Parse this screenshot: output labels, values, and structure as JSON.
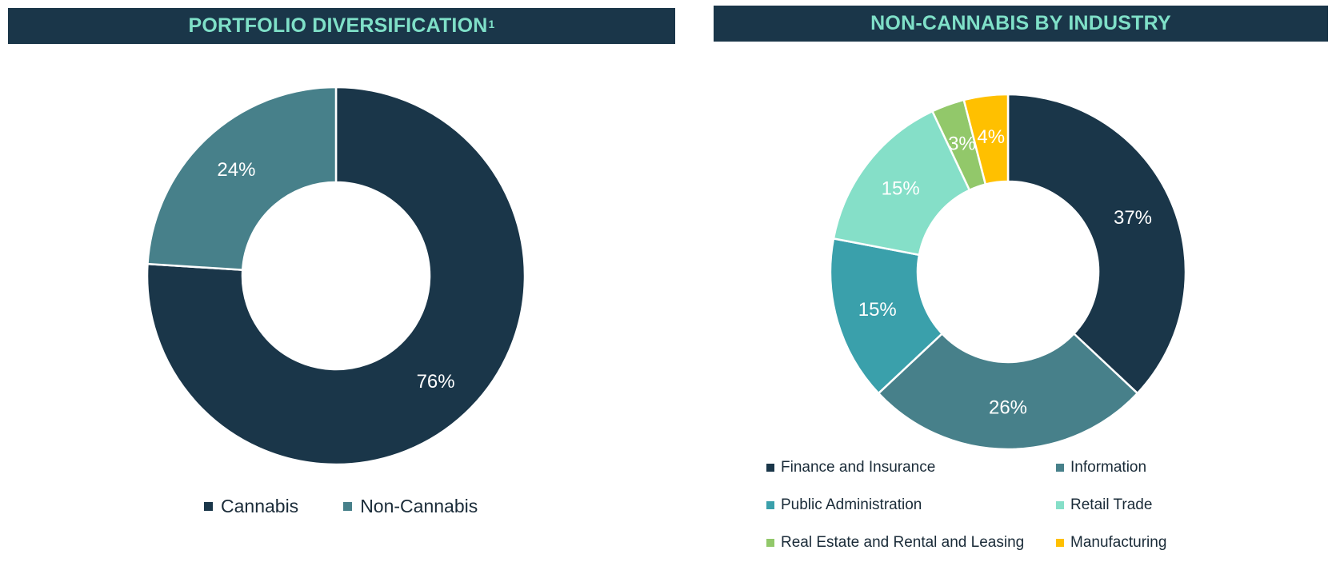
{
  "left": {
    "title": "PORTFOLIO DIVERSIFICATION",
    "title_sup": "1"
  },
  "right": {
    "title": "NON-CANNABIS BY INDUSTRY"
  },
  "chart_data": [
    {
      "type": "pie",
      "donut": true,
      "title": "PORTFOLIO DIVERSIFICATION",
      "categories": [
        "Cannabis",
        "Non-Cannabis"
      ],
      "values": [
        76,
        24
      ],
      "labels": [
        "76%",
        "24%"
      ],
      "colors": [
        "#1a3649",
        "#47808a"
      ],
      "legend": "bottom"
    },
    {
      "type": "pie",
      "donut": true,
      "title": "NON-CANNABIS BY INDUSTRY",
      "categories": [
        "Finance and Insurance",
        "Information",
        "Public Administration",
        "Retail Trade",
        "Real Estate and Rental and Leasing",
        "Manufacturing"
      ],
      "values": [
        37,
        26,
        15,
        15,
        3,
        4
      ],
      "labels": [
        "37%",
        "26%",
        "15%",
        "15%",
        "3%",
        "4%"
      ],
      "colors": [
        "#1a3649",
        "#47808a",
        "#3aa0ab",
        "#85dfc8",
        "#92c86a",
        "#ffc000"
      ],
      "legend": "bottom"
    }
  ]
}
